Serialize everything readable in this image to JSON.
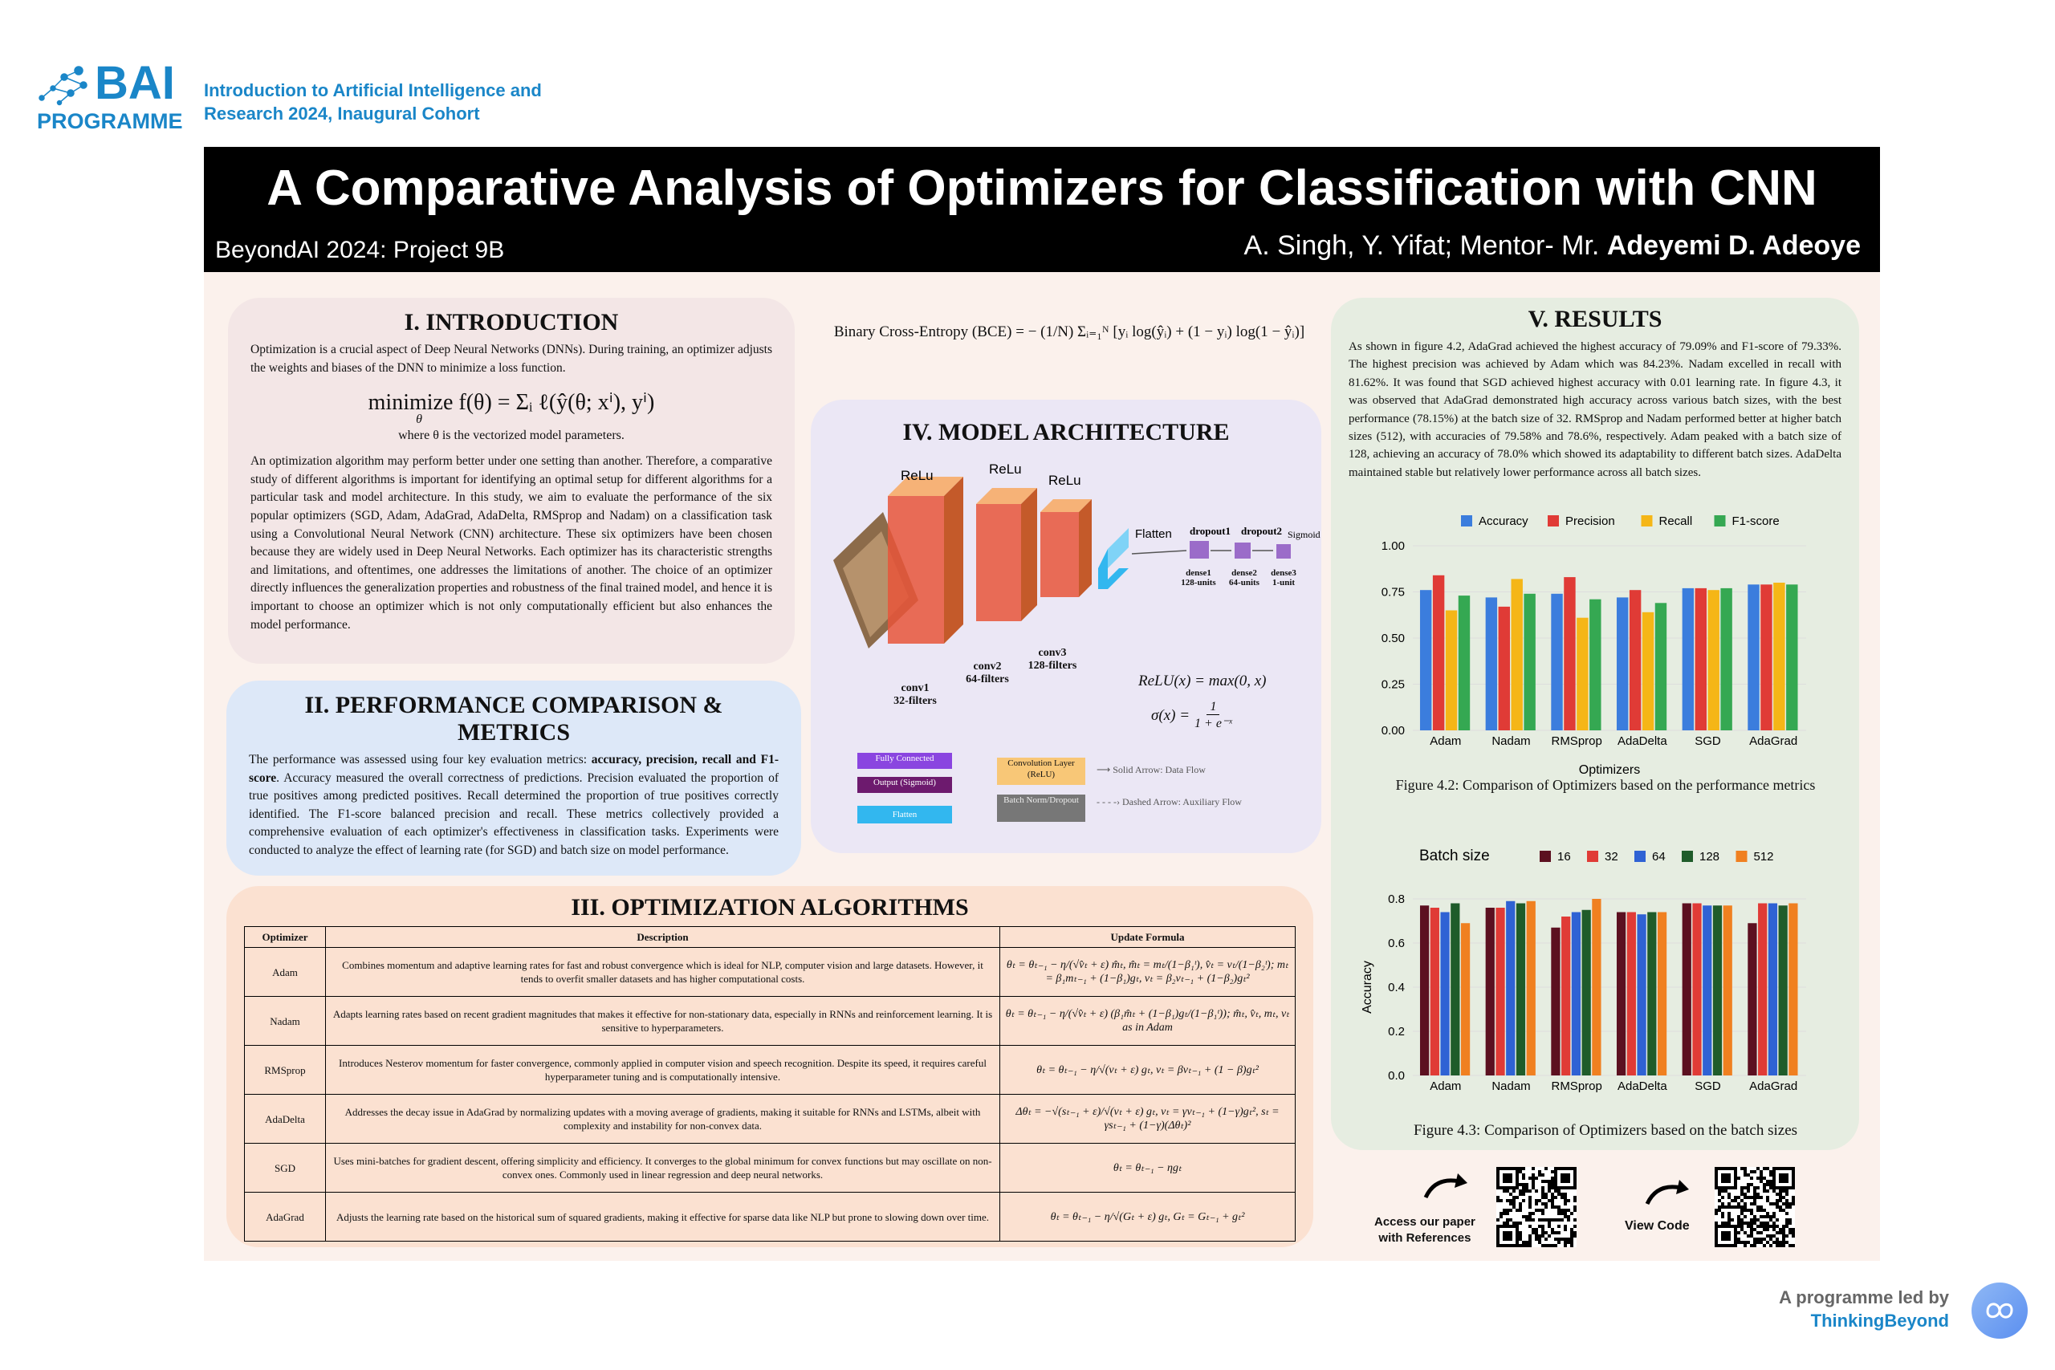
{
  "header": {
    "logo_text": "BAI",
    "logo_sub": "PROGRAMME",
    "org_line1": "Introduction to Artificial Intelligence and",
    "org_line2": "Research 2024, Inaugural Cohort",
    "title": "A Comparative Analysis of Optimizers for Classification with CNN",
    "project": "BeyondAI 2024: Project 9B",
    "authors": "A. Singh, Y. Yifat; Mentor- Mr. ",
    "mentor": "Adeyemi D. Adeoye"
  },
  "intro": {
    "heading": "I. INTRODUCTION",
    "para1": "Optimization is a crucial aspect of Deep Neural Networks (DNNs). During training, an optimizer adjusts the weights and biases of the DNN to minimize a loss function.",
    "formula": "minimize f(θ) = Σᵢ ℓ(ŷ(θ; xⁱ), yⁱ)",
    "formula_sub": "θ",
    "formula_note": "where θ is the vectorized model parameters.",
    "para2": "An optimization algorithm may perform better under one setting than another. Therefore, a comparative study of different algorithms is important for identifying an optimal setup for different algorithms for a particular task and model architecture. In this study, we aim to evaluate the performance of the six popular optimizers (SGD, Adam, AdaGrad, AdaDelta, RMSprop and Nadam) on a classification task using a Convolutional Neural Network (CNN) architecture. These six optimizers have been chosen because they are widely used in Deep Neural Networks. Each optimizer has its characteristic strengths and limitations, and oftentimes, one addresses the limitations of another. The choice of an optimizer directly influences the generalization properties and robustness of the final trained model, and hence it is important to choose an optimizer which is not only computationally efficient but also enhances the model performance."
  },
  "bce": "Binary Cross-Entropy (BCE) = − (1/N) Σᵢ₌₁ᴺ [yᵢ log(ŷᵢ) + (1 − yᵢ) log(1 − ŷᵢ)]",
  "metrics": {
    "heading": "II. PERFORMANCE COMPARISON & METRICS",
    "para_a": "The performance was assessed using four key evaluation metrics: ",
    "para_bold": "accuracy, precision, recall and F1-score",
    "para_b": ". Accuracy measured the overall correctness of predictions. Precision evaluated the proportion of true positives among predicted positives. Recall determined the proportion of true positives correctly identified. The F1-score balanced precision and recall. These metrics collectively provided a comprehensive evaluation of each optimizer's effectiveness in classification tasks. Experiments were conducted to analyze the effect of learning rate (for SGD) and batch size on model performance."
  },
  "algorithms": {
    "heading": "III. OPTIMIZATION ALGORITHMS",
    "columns": [
      "Optimizer",
      "Description",
      "Update Formula"
    ],
    "rows": [
      {
        "name": "Adam",
        "desc": "Combines momentum and adaptive learning rates for fast and robust convergence which is ideal for NLP, computer vision and large datasets. However, it tends to overfit smaller datasets and has higher computational costs.",
        "formula": "θₜ = θₜ₋₁ − η/(√v̂ₜ + ε) m̂ₜ,  m̂ₜ = mₜ/(1−β₁ᵗ),  v̂ₜ = vₜ/(1−β₂ᵗ);  mₜ = β₁mₜ₋₁ + (1−β₁)gₜ,  vₜ = β₂vₜ₋₁ + (1−β₂)gₜ²"
      },
      {
        "name": "Nadam",
        "desc": "Adapts learning rates based on recent gradient magnitudes that makes it effective for non-stationary data, especially in RNNs and reinforcement learning. It is sensitive to hyperparameters.",
        "formula": "θₜ = θₜ₋₁ − η/(√v̂ₜ + ε) (β₁m̂ₜ + (1−β₁)gₜ/(1−β₁ᵗ));  m̂ₜ, v̂ₜ, mₜ, vₜ as in Adam"
      },
      {
        "name": "RMSprop",
        "desc": "Introduces Nesterov momentum for faster convergence, commonly applied in computer vision and speech recognition. Despite its speed, it requires careful hyperparameter tuning and is computationally intensive.",
        "formula": "θₜ = θₜ₋₁ − η/√(vₜ + ε) gₜ,   vₜ = βvₜ₋₁ + (1 − β)gₜ²"
      },
      {
        "name": "AdaDelta",
        "desc": "Addresses the decay issue in AdaGrad by normalizing updates with a moving average of gradients, making it suitable for RNNs and LSTMs, albeit with complexity and instability for non-convex data.",
        "formula": "Δθₜ = −√(sₜ₋₁ + ε)/√(vₜ + ε) gₜ,  vₜ = γvₜ₋₁ + (1−γ)gₜ²,  sₜ = γsₜ₋₁ + (1−γ)(Δθₜ)²"
      },
      {
        "name": "SGD",
        "desc": "Uses mini-batches for gradient descent, offering simplicity and efficiency. It converges to the global minimum for convex functions but may oscillate on non-convex ones. Commonly used in linear regression and deep neural networks.",
        "formula": "θₜ = θₜ₋₁ − ηgₜ"
      },
      {
        "name": "AdaGrad",
        "desc": "Adjusts the learning rate based on the historical sum of squared gradients, making it effective for sparse data like NLP but prone to slowing down over time.",
        "formula": "θₜ = θₜ₋₁ − η/√(Gₜ + ε) gₜ,   Gₜ = Gₜ₋₁ + gₜ²"
      }
    ]
  },
  "architecture": {
    "heading": "IV. MODEL ARCHITECTURE",
    "relu_labels": [
      "ReLu",
      "ReLu",
      "ReLu"
    ],
    "flatten": "Flatten",
    "layers": [
      {
        "name": "conv1",
        "sub": "32-filters"
      },
      {
        "name": "conv2",
        "sub": "64-filters"
      },
      {
        "name": "conv3",
        "sub": "128-filters"
      }
    ],
    "dense": [
      {
        "name": "dense1",
        "sub": "128-units"
      },
      {
        "name": "dense2",
        "sub": "64-units"
      },
      {
        "name": "dense3",
        "sub": "1-unit"
      }
    ],
    "dropout": [
      "dropout1",
      "dropout2"
    ],
    "sigmoid": "Sigmoid",
    "relu_formula": "ReLU(x) = max(0, x)",
    "sigma_formula_lhs": "σ(x) =",
    "sigma_num": "1",
    "sigma_den": "1 + e⁻ˣ",
    "legend": {
      "fully_connected": "Fully Connected",
      "output": "Output (Sigmoid)",
      "flatten": "Flatten",
      "conv": "Convolution Layer (ReLU)",
      "batch": "Batch Norm/Dropout",
      "solid": "Solid Arrow: Data Flow",
      "dashed": "Dashed Arrow: Auxiliary Flow"
    },
    "colors": {
      "conv": "#e8553a",
      "conv_face": "#f6b277",
      "flatten": "#32b7ef",
      "dense": "#9b6cc9",
      "fc_legend": "#8a45e0",
      "out_legend": "#6d1a6e",
      "batch_legend": "#777777"
    }
  },
  "results": {
    "heading": "V. RESULTS",
    "para": "As shown in figure 4.2, AdaGrad achieved the highest accuracy of 79.09% and F1-score of 79.33%. The highest precision was achieved by Adam which was 84.23%. Nadam excelled in recall with 81.62%. It was found that SGD achieved highest accuracy with 0.01 learning rate. In figure 4.3, it was observed that AdaGrad demonstrated high accuracy across various batch sizes, with the best performance (78.15%) at the batch size of 32. RMSprop and Nadam performed better at higher batch sizes (512), with accuracies of 79.58% and 78.6%, respectively. Adam peaked with a batch size of 128, achieving an accuracy of 78.0% which showed its adaptability to different batch sizes. AdaDelta maintained stable but relatively lower performance across all batch sizes.",
    "fig2_caption": "Figure 4.2: Comparison of Optimizers based on the performance metrics",
    "fig3_caption": "Figure 4.3: Comparison of Optimizers based on the batch sizes",
    "paper_label_1": "Access our paper",
    "paper_label_2": "with References",
    "code_label": "View Code"
  },
  "footer": {
    "line1": "A programme led by",
    "line2": "ThinkingBeyond"
  },
  "chart_data": [
    {
      "type": "bar",
      "categories": [
        "Adam",
        "Nadam",
        "RMSprop",
        "AdaDelta",
        "SGD",
        "AdaGrad"
      ],
      "xlabel": "Optimizers",
      "ylabel": "",
      "ylim": [
        0,
        1.0
      ],
      "yticks": [
        0.0,
        0.25,
        0.5,
        0.75,
        1.0
      ],
      "legend_position": "top",
      "series": [
        {
          "name": "Accuracy",
          "color": "#3b7ddd",
          "values": [
            0.76,
            0.72,
            0.74,
            0.72,
            0.77,
            0.79
          ]
        },
        {
          "name": "Precision",
          "color": "#e03b36",
          "values": [
            0.84,
            0.67,
            0.83,
            0.76,
            0.77,
            0.79
          ]
        },
        {
          "name": "Recall",
          "color": "#f5b617",
          "values": [
            0.65,
            0.82,
            0.61,
            0.64,
            0.76,
            0.8
          ]
        },
        {
          "name": "F1-score",
          "color": "#35a852",
          "values": [
            0.73,
            0.74,
            0.71,
            0.69,
            0.77,
            0.79
          ]
        }
      ]
    },
    {
      "type": "bar",
      "categories": [
        "Adam",
        "Nadam",
        "RMSprop",
        "AdaDelta",
        "SGD",
        "AdaGrad"
      ],
      "xlabel": "",
      "ylabel": "Accuracy",
      "legend_title": "Batch size",
      "ylim": [
        0,
        0.8
      ],
      "yticks": [
        0.0,
        0.2,
        0.4,
        0.6,
        0.8
      ],
      "legend_position": "top",
      "series": [
        {
          "name": "16",
          "color": "#5c1020",
          "values": [
            0.77,
            0.76,
            0.67,
            0.74,
            0.78,
            0.69
          ]
        },
        {
          "name": "32",
          "color": "#e03b36",
          "values": [
            0.76,
            0.76,
            0.72,
            0.74,
            0.78,
            0.78
          ]
        },
        {
          "name": "64",
          "color": "#2f62d4",
          "values": [
            0.74,
            0.79,
            0.74,
            0.73,
            0.77,
            0.78
          ]
        },
        {
          "name": "128",
          "color": "#1f5c2a",
          "values": [
            0.78,
            0.78,
            0.75,
            0.74,
            0.77,
            0.77
          ]
        },
        {
          "name": "512",
          "color": "#f08020",
          "values": [
            0.69,
            0.79,
            0.8,
            0.74,
            0.77,
            0.78
          ]
        }
      ]
    }
  ]
}
